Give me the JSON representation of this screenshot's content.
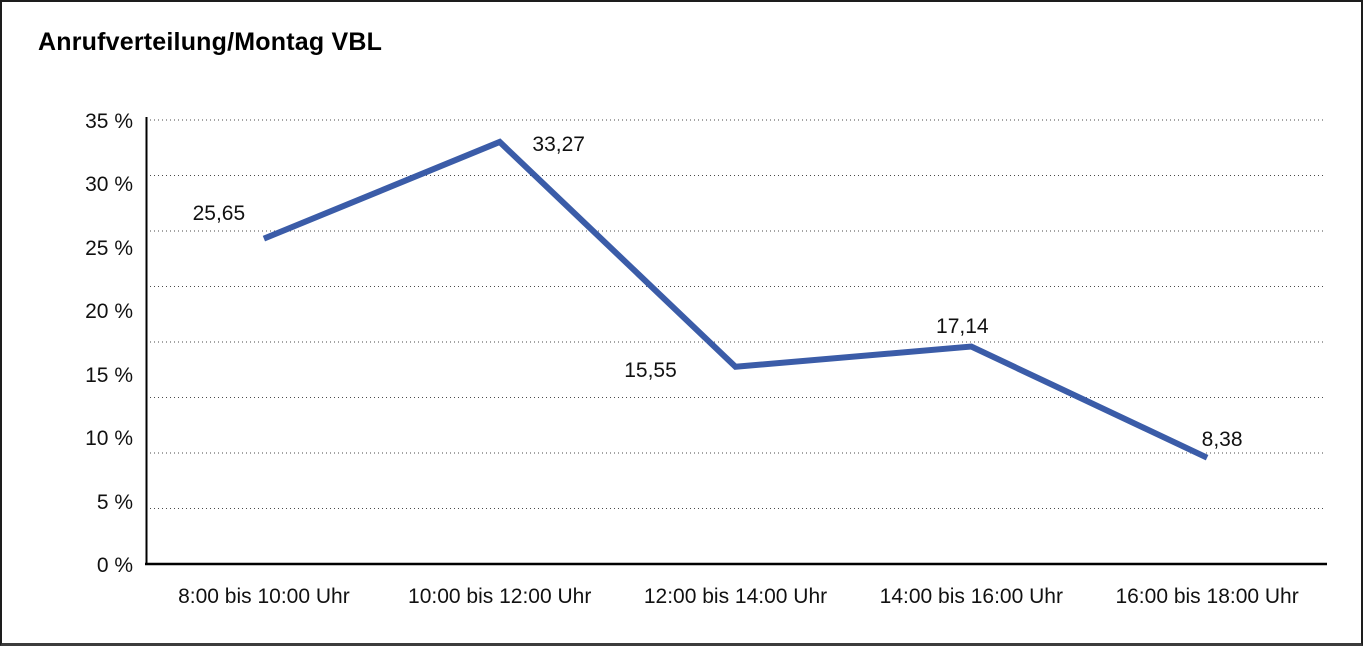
{
  "window": {
    "title": "Anrufverteilung/Montag VBL"
  },
  "chart_data": {
    "type": "line",
    "title": "Anrufverteilung/Montag VBL",
    "categories": [
      "8:00 bis 10:00 Uhr",
      "10:00 bis 12:00 Uhr",
      "12:00 bis 14:00 Uhr",
      "14:00 bis 16:00 Uhr",
      "16:00 bis 18:00 Uhr"
    ],
    "values": [
      25.65,
      33.27,
      15.55,
      17.14,
      8.38
    ],
    "value_labels": [
      "25,65",
      "33,27",
      "15,55",
      "17,14",
      "8,38"
    ],
    "unit": "%",
    "y_ticks": [
      "35 %",
      "30 %",
      "25 %",
      "20 %",
      "15 %",
      "10 %",
      "5 %",
      "0 %"
    ],
    "ylim": [
      0,
      35
    ],
    "xlabel": "",
    "ylabel": "",
    "legend": "none",
    "grid": {
      "horizontal": true,
      "style": "dotted",
      "color": "#4a4a4a"
    },
    "line_color": "#3B5CA8",
    "axis_color": "#000000",
    "text_color": "#111111",
    "background": "#FFFFFF"
  }
}
